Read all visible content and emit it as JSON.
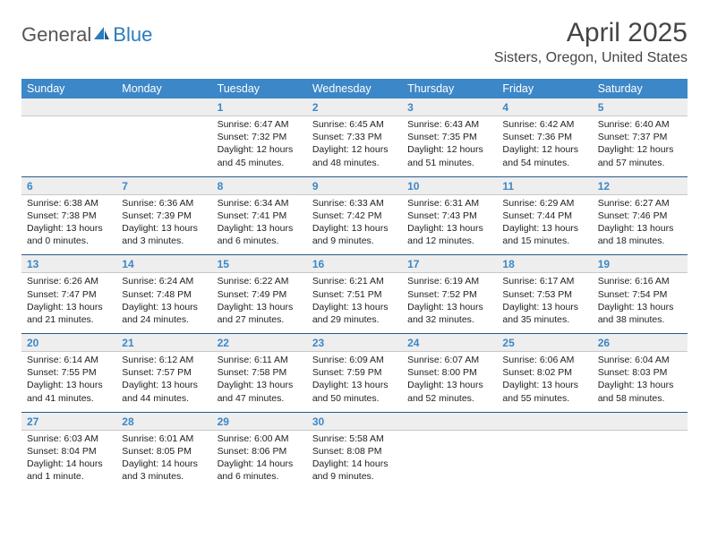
{
  "brand": {
    "part1": "General",
    "part2": "Blue"
  },
  "title": "April 2025",
  "location": "Sisters, Oregon, United States",
  "colors": {
    "header_bg": "#3c87c7",
    "header_text": "#ffffff",
    "daynum_bg": "#eeeeee",
    "daynum_color": "#3c87c7",
    "sep": "#2a5a8a",
    "body_text": "#222222",
    "title_color": "#454545"
  },
  "weekdays": [
    "Sunday",
    "Monday",
    "Tuesday",
    "Wednesday",
    "Thursday",
    "Friday",
    "Saturday"
  ],
  "weeks": [
    [
      {
        "n": "",
        "sr": "",
        "ss": "",
        "dl": ""
      },
      {
        "n": "",
        "sr": "",
        "ss": "",
        "dl": ""
      },
      {
        "n": "1",
        "sr": "Sunrise: 6:47 AM",
        "ss": "Sunset: 7:32 PM",
        "dl": "Daylight: 12 hours and 45 minutes."
      },
      {
        "n": "2",
        "sr": "Sunrise: 6:45 AM",
        "ss": "Sunset: 7:33 PM",
        "dl": "Daylight: 12 hours and 48 minutes."
      },
      {
        "n": "3",
        "sr": "Sunrise: 6:43 AM",
        "ss": "Sunset: 7:35 PM",
        "dl": "Daylight: 12 hours and 51 minutes."
      },
      {
        "n": "4",
        "sr": "Sunrise: 6:42 AM",
        "ss": "Sunset: 7:36 PM",
        "dl": "Daylight: 12 hours and 54 minutes."
      },
      {
        "n": "5",
        "sr": "Sunrise: 6:40 AM",
        "ss": "Sunset: 7:37 PM",
        "dl": "Daylight: 12 hours and 57 minutes."
      }
    ],
    [
      {
        "n": "6",
        "sr": "Sunrise: 6:38 AM",
        "ss": "Sunset: 7:38 PM",
        "dl": "Daylight: 13 hours and 0 minutes."
      },
      {
        "n": "7",
        "sr": "Sunrise: 6:36 AM",
        "ss": "Sunset: 7:39 PM",
        "dl": "Daylight: 13 hours and 3 minutes."
      },
      {
        "n": "8",
        "sr": "Sunrise: 6:34 AM",
        "ss": "Sunset: 7:41 PM",
        "dl": "Daylight: 13 hours and 6 minutes."
      },
      {
        "n": "9",
        "sr": "Sunrise: 6:33 AM",
        "ss": "Sunset: 7:42 PM",
        "dl": "Daylight: 13 hours and 9 minutes."
      },
      {
        "n": "10",
        "sr": "Sunrise: 6:31 AM",
        "ss": "Sunset: 7:43 PM",
        "dl": "Daylight: 13 hours and 12 minutes."
      },
      {
        "n": "11",
        "sr": "Sunrise: 6:29 AM",
        "ss": "Sunset: 7:44 PM",
        "dl": "Daylight: 13 hours and 15 minutes."
      },
      {
        "n": "12",
        "sr": "Sunrise: 6:27 AM",
        "ss": "Sunset: 7:46 PM",
        "dl": "Daylight: 13 hours and 18 minutes."
      }
    ],
    [
      {
        "n": "13",
        "sr": "Sunrise: 6:26 AM",
        "ss": "Sunset: 7:47 PM",
        "dl": "Daylight: 13 hours and 21 minutes."
      },
      {
        "n": "14",
        "sr": "Sunrise: 6:24 AM",
        "ss": "Sunset: 7:48 PM",
        "dl": "Daylight: 13 hours and 24 minutes."
      },
      {
        "n": "15",
        "sr": "Sunrise: 6:22 AM",
        "ss": "Sunset: 7:49 PM",
        "dl": "Daylight: 13 hours and 27 minutes."
      },
      {
        "n": "16",
        "sr": "Sunrise: 6:21 AM",
        "ss": "Sunset: 7:51 PM",
        "dl": "Daylight: 13 hours and 29 minutes."
      },
      {
        "n": "17",
        "sr": "Sunrise: 6:19 AM",
        "ss": "Sunset: 7:52 PM",
        "dl": "Daylight: 13 hours and 32 minutes."
      },
      {
        "n": "18",
        "sr": "Sunrise: 6:17 AM",
        "ss": "Sunset: 7:53 PM",
        "dl": "Daylight: 13 hours and 35 minutes."
      },
      {
        "n": "19",
        "sr": "Sunrise: 6:16 AM",
        "ss": "Sunset: 7:54 PM",
        "dl": "Daylight: 13 hours and 38 minutes."
      }
    ],
    [
      {
        "n": "20",
        "sr": "Sunrise: 6:14 AM",
        "ss": "Sunset: 7:55 PM",
        "dl": "Daylight: 13 hours and 41 minutes."
      },
      {
        "n": "21",
        "sr": "Sunrise: 6:12 AM",
        "ss": "Sunset: 7:57 PM",
        "dl": "Daylight: 13 hours and 44 minutes."
      },
      {
        "n": "22",
        "sr": "Sunrise: 6:11 AM",
        "ss": "Sunset: 7:58 PM",
        "dl": "Daylight: 13 hours and 47 minutes."
      },
      {
        "n": "23",
        "sr": "Sunrise: 6:09 AM",
        "ss": "Sunset: 7:59 PM",
        "dl": "Daylight: 13 hours and 50 minutes."
      },
      {
        "n": "24",
        "sr": "Sunrise: 6:07 AM",
        "ss": "Sunset: 8:00 PM",
        "dl": "Daylight: 13 hours and 52 minutes."
      },
      {
        "n": "25",
        "sr": "Sunrise: 6:06 AM",
        "ss": "Sunset: 8:02 PM",
        "dl": "Daylight: 13 hours and 55 minutes."
      },
      {
        "n": "26",
        "sr": "Sunrise: 6:04 AM",
        "ss": "Sunset: 8:03 PM",
        "dl": "Daylight: 13 hours and 58 minutes."
      }
    ],
    [
      {
        "n": "27",
        "sr": "Sunrise: 6:03 AM",
        "ss": "Sunset: 8:04 PM",
        "dl": "Daylight: 14 hours and 1 minute."
      },
      {
        "n": "28",
        "sr": "Sunrise: 6:01 AM",
        "ss": "Sunset: 8:05 PM",
        "dl": "Daylight: 14 hours and 3 minutes."
      },
      {
        "n": "29",
        "sr": "Sunrise: 6:00 AM",
        "ss": "Sunset: 8:06 PM",
        "dl": "Daylight: 14 hours and 6 minutes."
      },
      {
        "n": "30",
        "sr": "Sunrise: 5:58 AM",
        "ss": "Sunset: 8:08 PM",
        "dl": "Daylight: 14 hours and 9 minutes."
      },
      {
        "n": "",
        "sr": "",
        "ss": "",
        "dl": ""
      },
      {
        "n": "",
        "sr": "",
        "ss": "",
        "dl": ""
      },
      {
        "n": "",
        "sr": "",
        "ss": "",
        "dl": ""
      }
    ]
  ]
}
